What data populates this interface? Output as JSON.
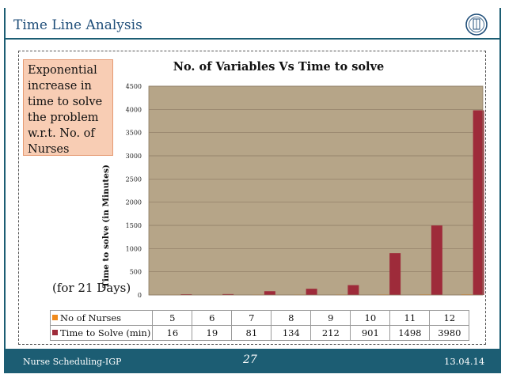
{
  "slide": {
    "title": "Time Line Analysis",
    "callout": "Exponential increase in time to solve the problem w.r.t. No. of Nurses",
    "period_note": "(for 21 Days)",
    "footer_left": "Nurse Scheduling-IGP",
    "page_number": "27",
    "date": "13.04.14"
  },
  "colors": {
    "theme": "#1c5d73",
    "plot_background": "#b6a588",
    "bar_time": "#9e2b3a",
    "bar_nurses": "#f08a1c",
    "callout_fill": "#f8cdb4"
  },
  "chart_data": {
    "type": "bar",
    "title": "No. of Variables Vs Time to solve",
    "xlabel": "",
    "ylabel": "Time to solve (in Minutes)",
    "ylim": [
      0,
      4500
    ],
    "yticks": [
      0,
      500,
      1000,
      1500,
      2000,
      2500,
      3000,
      3500,
      4000,
      4500
    ],
    "categories": [
      "5",
      "6",
      "7",
      "8",
      "9",
      "10",
      "11",
      "12"
    ],
    "series": [
      {
        "name": "No of Nurses",
        "values": [
          5,
          6,
          7,
          8,
          9,
          10,
          11,
          12
        ]
      },
      {
        "name": "Time to Solve (min)",
        "values": [
          16,
          19,
          81,
          134,
          212,
          901,
          1498,
          3980
        ]
      }
    ]
  }
}
